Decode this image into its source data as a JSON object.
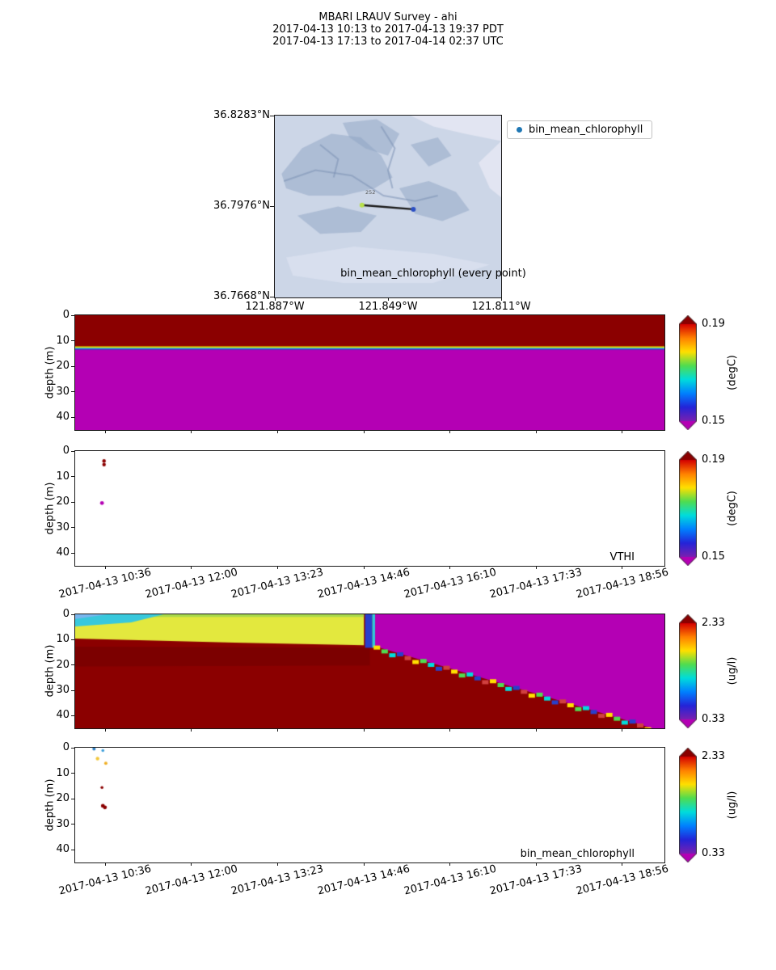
{
  "title": {
    "line1": "MBARI LRAUV Survey - ahi",
    "line2": "2017-04-13 10:13  to  2017-04-13 19:37 PDT",
    "line3": "2017-04-13 17:13  to  2017-04-14 02:37 UTC"
  },
  "time_axis": {
    "labels": [
      "2017-04-13 10:36",
      "2017-04-13 12:00",
      "2017-04-13 13:23",
      "2017-04-13 14:46",
      "2017-04-13 16:10",
      "2017-04-13 17:33",
      "2017-04-13 18:56"
    ],
    "fractions": [
      0.051,
      0.197,
      0.343,
      0.49,
      0.636,
      0.782,
      0.928
    ]
  },
  "depth_axis": {
    "label": "depth (m)",
    "ticks": [
      "0",
      "10",
      "20",
      "30",
      "40"
    ],
    "max_depth": 45
  },
  "colormap": {
    "stops": [
      "#d40000",
      "#ff8000",
      "#ffe000",
      "#50dc50",
      "#00dcdc",
      "#0080ff",
      "#2424d8",
      "#7a20b0"
    ],
    "over": "#8b0000",
    "under": "#b400b4"
  },
  "chart_data": [
    {
      "id": "map",
      "type": "scatter",
      "caption": "bin_mean_chlorophyll (every point)",
      "legend_label": "bin_mean_chlorophyll",
      "legend_marker_color": "#1f77b4",
      "track_label": "252",
      "lat_ticks": [
        "36.8283°N",
        "36.7976°N",
        "36.7668°N"
      ],
      "lon_ticks": [
        "121.887°W",
        "121.849°W",
        "121.811°W"
      ],
      "colors": {
        "water": "#ccd6e7",
        "ridge": "#8ea4c3",
        "channel": "#7b92b5",
        "land": "#e2e5f2"
      },
      "track": {
        "x1": 0.385,
        "y1": 0.492,
        "x2": 0.612,
        "y2": 0.515,
        "color": "#1a1a1a",
        "start_color": "#b7e04b",
        "end_color": "#2b4fc4"
      }
    },
    {
      "id": "temperature_contour",
      "type": "heatmap",
      "colorbar": {
        "max": "0.19",
        "min": "0.15",
        "unit": "(degC)"
      },
      "bands": [
        {
          "from": 0,
          "to": 12.2,
          "color": "#8b0000"
        },
        {
          "from": 12.2,
          "to": 12.75,
          "color": "#e6e600"
        },
        {
          "from": 12.75,
          "to": 13.15,
          "color": "#28b4dc"
        },
        {
          "from": 13.15,
          "to": 13.55,
          "color": "#3434cc"
        },
        {
          "from": 13.55,
          "to": 45,
          "color": "#b400b4"
        }
      ]
    },
    {
      "id": "vthi_scatter",
      "type": "scatter",
      "corner_label": "VTHI",
      "colorbar": {
        "max": "0.19",
        "min": "0.15",
        "unit": "(degC)"
      },
      "points": [
        {
          "x": 0.049,
          "depth": 3.9,
          "color": "#8b0000",
          "r": 2.2
        },
        {
          "x": 0.049,
          "depth": 5.3,
          "color": "#8b0000",
          "r": 2.2
        },
        {
          "x": 0.0455,
          "depth": 20.4,
          "color": "#b400b4",
          "r": 2.4
        }
      ]
    },
    {
      "id": "chlorophyll_contour",
      "type": "heatmap",
      "colorbar": {
        "max": "2.33",
        "min": "0.33",
        "unit": "(ug/l)"
      },
      "regions": [
        {
          "color": "#8b0000",
          "poly": [
            [
              0,
              0
            ],
            [
              1,
              0
            ],
            [
              1,
              45
            ],
            [
              0,
              45
            ]
          ]
        },
        {
          "color": "#7c0000",
          "poly": [
            [
              0,
              12.8
            ],
            [
              0.5,
              13.2
            ],
            [
              0.5,
              20.2
            ],
            [
              0,
              20.6
            ]
          ]
        },
        {
          "color": "#e3e83e",
          "poly": [
            [
              0,
              1.3
            ],
            [
              0.13,
              0.3
            ],
            [
              0.49,
              0
            ],
            [
              0.49,
              12.2
            ],
            [
              0.27,
              11.2
            ],
            [
              0,
              9.6
            ]
          ]
        },
        {
          "color": "#a8d84a",
          "poly": [
            [
              0.13,
              0
            ],
            [
              0.49,
              0
            ],
            [
              0.49,
              1.0
            ],
            [
              0.13,
              1.0
            ]
          ]
        },
        {
          "color": "#38c8dc",
          "poly": [
            [
              0,
              0
            ],
            [
              0.15,
              0
            ],
            [
              0.095,
              3.2
            ],
            [
              0,
              4.8
            ]
          ]
        },
        {
          "color": "#79b6ee",
          "poly": [
            [
              0,
              0
            ],
            [
              0.055,
              0
            ],
            [
              0,
              1.8
            ]
          ]
        },
        {
          "color": "#b400b4",
          "poly": [
            [
              0.509,
              0
            ],
            [
              1,
              0
            ],
            [
              1,
              45
            ],
            [
              0.978,
              45
            ],
            [
              0.955,
              43.2
            ],
            [
              0.52,
              13.4
            ],
            [
              0.509,
              12.4
            ]
          ]
        },
        {
          "color": "#2840cc",
          "poly": [
            [
              0.492,
              0
            ],
            [
              0.504,
              0
            ],
            [
              0.504,
              13.2
            ],
            [
              0.492,
              13.2
            ]
          ]
        },
        {
          "color": "#30c8dc",
          "poly": [
            [
              0.504,
              0
            ],
            [
              0.509,
              0
            ],
            [
              0.509,
              13.2
            ],
            [
              0.504,
              13.2
            ]
          ]
        }
      ],
      "fringe": {
        "x1": 0.512,
        "d1": 13.6,
        "x2": 0.972,
        "d2": 44.6,
        "count": 36,
        "colors": [
          "#ffe000",
          "#50dc50",
          "#00dcdc",
          "#2840cc",
          "#d04040"
        ]
      }
    },
    {
      "id": "chlorophyll_scatter",
      "type": "scatter",
      "corner_label": "bin_mean_chlorophyll",
      "colorbar": {
        "max": "2.33",
        "min": "0.33",
        "unit": "(ug/l)"
      },
      "points": [
        {
          "x": 0.032,
          "depth": 0.5,
          "color": "#2e7fc2",
          "r": 2.0
        },
        {
          "x": 0.047,
          "depth": 1.1,
          "color": "#3fa0dc",
          "r": 1.8
        },
        {
          "x": 0.038,
          "depth": 4.3,
          "color": "#f2c73c",
          "r": 2.2
        },
        {
          "x": 0.052,
          "depth": 6.1,
          "color": "#f0b028",
          "r": 2.0
        },
        {
          "x": 0.0455,
          "depth": 15.6,
          "color": "#8b0000",
          "r": 1.8
        },
        {
          "x": 0.047,
          "depth": 22.8,
          "color": "#8b0000",
          "r": 2.4
        },
        {
          "x": 0.0505,
          "depth": 23.4,
          "color": "#8b0000",
          "r": 2.4
        }
      ]
    }
  ]
}
